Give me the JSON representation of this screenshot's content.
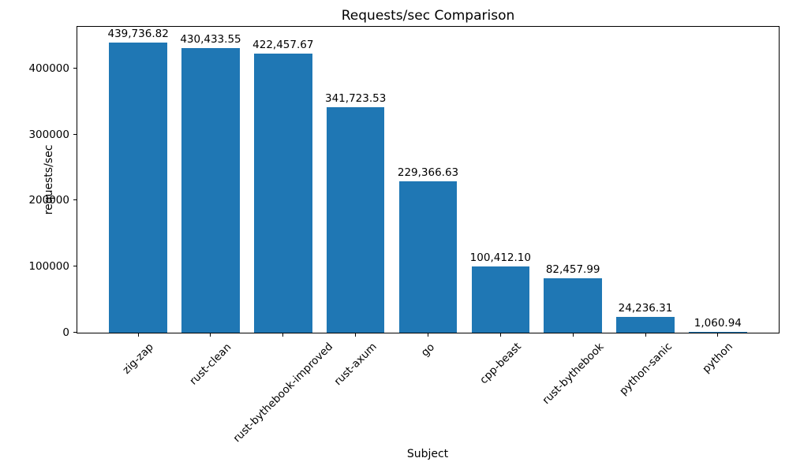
{
  "chart_data": {
    "type": "bar",
    "title": "Requests/sec Comparison",
    "xlabel": "Subject",
    "ylabel": "requests/sec",
    "categories": [
      "zig-zap",
      "rust-clean",
      "rust-bythebook-improved",
      "rust-axum",
      "go",
      "cpp-beast",
      "rust-bythebook",
      "python-sanic",
      "python"
    ],
    "values": [
      439736.82,
      430433.55,
      422457.67,
      341723.53,
      229366.63,
      100412.1,
      82457.99,
      24236.31,
      1060.94
    ],
    "value_labels": [
      "439,736.82",
      "430,433.55",
      "422,457.67",
      "341,723.53",
      "229,366.63",
      "100,412.10",
      "82,457.99",
      "24,236.31",
      "1,060.94"
    ],
    "ytick_values": [
      0,
      100000,
      200000,
      300000,
      400000
    ],
    "ytick_labels": [
      "0",
      "100000",
      "200000",
      "300000",
      "400000"
    ],
    "ylim": [
      0,
      463164
    ],
    "grid": false,
    "legend": "none",
    "bar_color": "#1f77b4"
  }
}
